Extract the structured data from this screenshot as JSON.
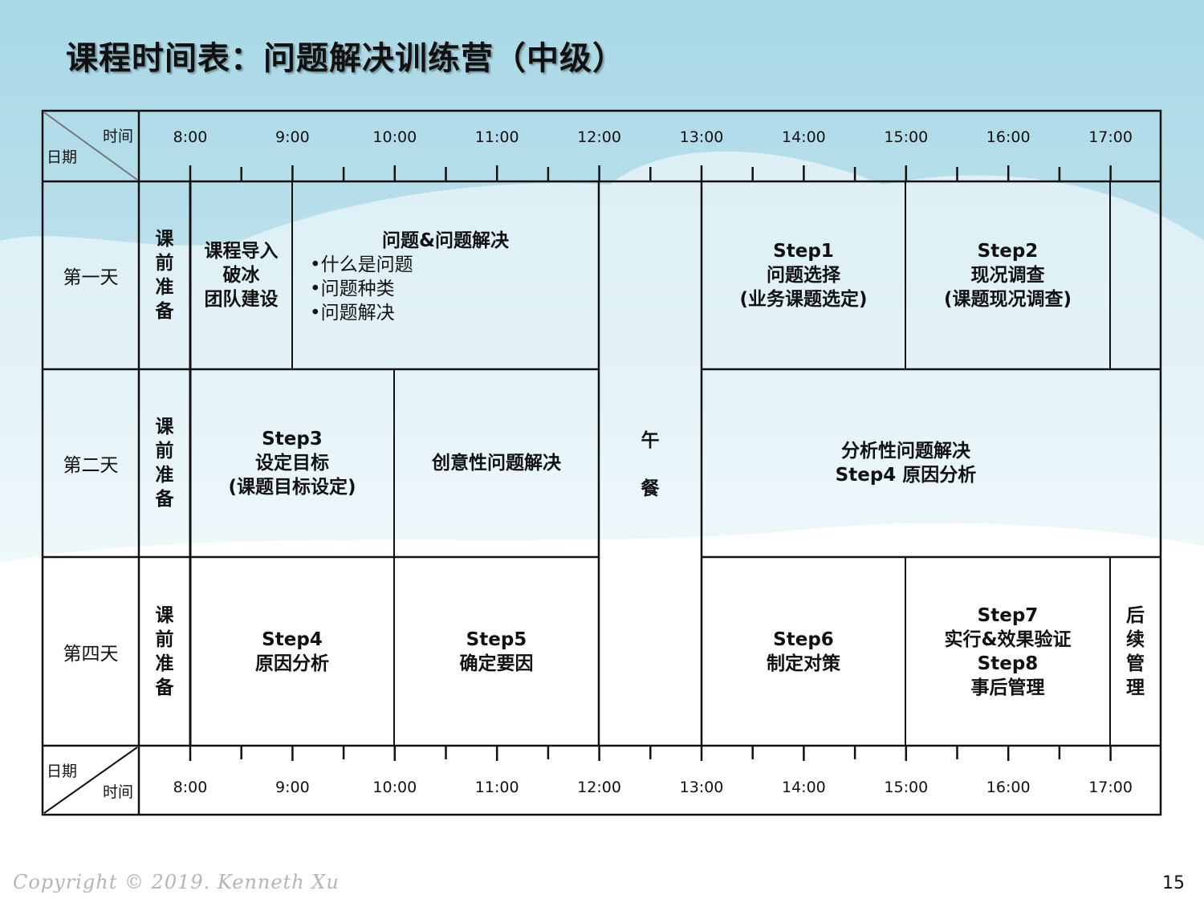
{
  "title": "课程时间表：问题解决训练营（中级）",
  "header": {
    "time_label": "时间",
    "date_label": "日期"
  },
  "times": [
    "8:00",
    "9:00",
    "10:00",
    "11:00",
    "12:00",
    "13:00",
    "14:00",
    "15:00",
    "16:00",
    "17:00"
  ],
  "days": [
    {
      "label": "第一天",
      "prep": "课前准备"
    },
    {
      "label": "第二天",
      "prep": "课前准备"
    },
    {
      "label": "第四天",
      "prep": "课前准备"
    }
  ],
  "day1": {
    "intro": [
      "课程导入",
      "破冰",
      "团队建设"
    ],
    "problem": {
      "title": "问题&问题解决",
      "bullets": [
        "•什么是问题",
        "•问题种类",
        "•问题解决"
      ]
    },
    "step1": [
      "Step1",
      "问题选择",
      "(业务课题选定)"
    ],
    "step2": [
      "Step2",
      "现况调查",
      "(课题现况调查)"
    ]
  },
  "day2": {
    "step3": [
      "Step3",
      "设定目标",
      "(课题目标设定)"
    ],
    "creative": "创意性问题解决",
    "analytic": [
      "分析性问题解决",
      "Step4 原因分析"
    ]
  },
  "lunch": [
    "午",
    "餐"
  ],
  "day4": {
    "step4": [
      "Step4",
      "原因分析"
    ],
    "step5": [
      "Step5",
      "确定要因"
    ],
    "step6": [
      "Step6",
      "制定对策"
    ],
    "step78": [
      "Step7",
      "实行&效果验证",
      "Step8",
      "事后管理"
    ],
    "followup": "后续管理"
  },
  "footer": {
    "copyright": "Copyright © 2019. Kenneth Xu",
    "page": "15"
  }
}
